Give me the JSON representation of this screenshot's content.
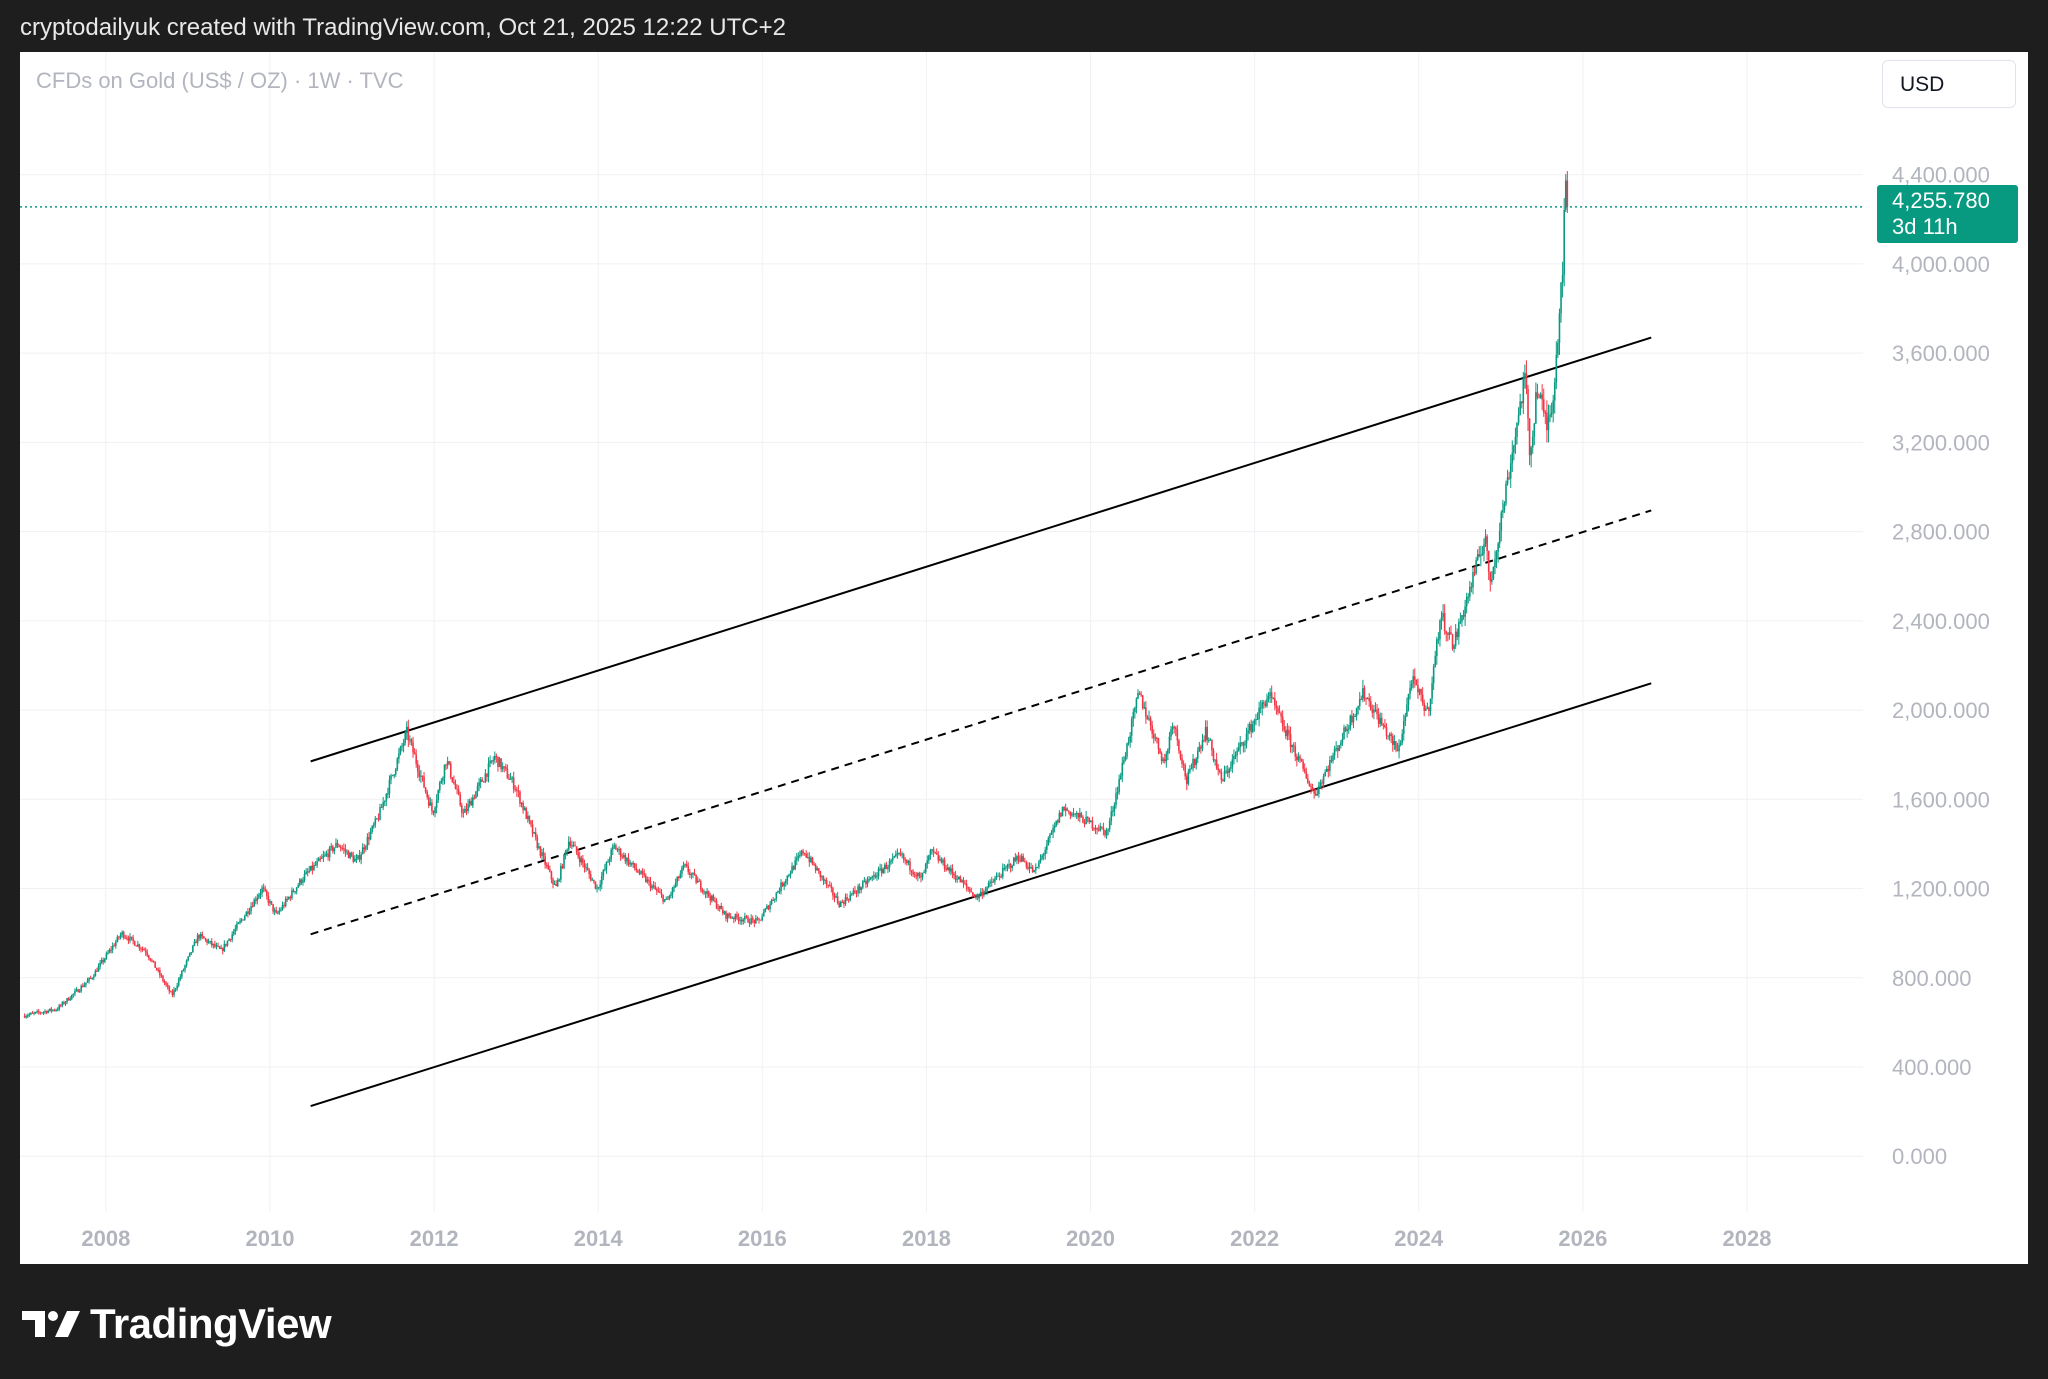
{
  "header": {
    "text": "cryptodailyuk created with TradingView.com, Oct 21, 2025 12:22 UTC+2"
  },
  "chart_header": {
    "symbol": "CFDs on Gold (US$ / OZ) · 1W · TVC",
    "currency": "USD"
  },
  "price_tag": {
    "price": "4,255.780",
    "countdown": "3d 11h"
  },
  "footer": {
    "brand": "TradingView"
  },
  "colors": {
    "up": "#089981",
    "down": "#f23645",
    "price_line": "#089981",
    "grid": "#f0f1f4",
    "axis_text": "#b2b5be",
    "channel": "#000000"
  },
  "chart_data": {
    "type": "candlestick",
    "timeframe": "1W",
    "x_axis": {
      "type": "date",
      "range": [
        "2006-12-15",
        "2029-06-01"
      ],
      "tick_labels": [
        "2008",
        "2010",
        "2012",
        "2014",
        "2016",
        "2018",
        "2020",
        "2022",
        "2024",
        "2026",
        "2028"
      ]
    },
    "y_axis": {
      "range": [
        -250,
        4950
      ],
      "tick_labels": [
        "0.000",
        "400.000",
        "800.000",
        "1,200.000",
        "1,600.000",
        "2,000.000",
        "2,400.000",
        "2,800.000",
        "3,200.000",
        "3,600.000",
        "4,000.000",
        "4,400.000"
      ],
      "ticks": [
        0,
        400,
        800,
        1200,
        1600,
        2000,
        2400,
        2800,
        3200,
        3600,
        4000,
        4400
      ]
    },
    "last_price": 4255.78,
    "grid": true,
    "price_path": [
      [
        "2007-01-01",
        630
      ],
      [
        "2007-06-01",
        660
      ],
      [
        "2007-11-01",
        800
      ],
      [
        "2008-03-15",
        1000
      ],
      [
        "2008-07-01",
        920
      ],
      [
        "2008-10-25",
        720
      ],
      [
        "2009-02-20",
        990
      ],
      [
        "2009-06-01",
        920
      ],
      [
        "2009-12-01",
        1200
      ],
      [
        "2010-02-01",
        1080
      ],
      [
        "2010-06-01",
        1250
      ],
      [
        "2010-11-01",
        1400
      ],
      [
        "2011-01-25",
        1320
      ],
      [
        "2011-05-01",
        1520
      ],
      [
        "2011-09-05",
        1900
      ],
      [
        "2011-12-29",
        1540
      ],
      [
        "2012-02-28",
        1780
      ],
      [
        "2012-05-15",
        1530
      ],
      [
        "2012-10-01",
        1790
      ],
      [
        "2012-12-30",
        1660
      ],
      [
        "2013-04-15",
        1380
      ],
      [
        "2013-06-30",
        1200
      ],
      [
        "2013-08-28",
        1420
      ],
      [
        "2013-12-31",
        1200
      ],
      [
        "2014-03-15",
        1390
      ],
      [
        "2014-11-05",
        1140
      ],
      [
        "2015-01-22",
        1300
      ],
      [
        "2015-07-24",
        1080
      ],
      [
        "2015-12-17",
        1050
      ],
      [
        "2016-07-06",
        1370
      ],
      [
        "2016-12-15",
        1130
      ],
      [
        "2017-09-08",
        1350
      ],
      [
        "2017-12-12",
        1240
      ],
      [
        "2018-01-25",
        1365
      ],
      [
        "2018-08-16",
        1160
      ],
      [
        "2019-02-20",
        1345
      ],
      [
        "2019-05-01",
        1270
      ],
      [
        "2019-09-04",
        1560
      ],
      [
        "2020-03-19",
        1450
      ],
      [
        "2020-08-07",
        2075
      ],
      [
        "2020-11-30",
        1760
      ],
      [
        "2021-01-06",
        1960
      ],
      [
        "2021-03-08",
        1680
      ],
      [
        "2021-06-01",
        1910
      ],
      [
        "2021-08-09",
        1680
      ],
      [
        "2022-03-08",
        2070
      ],
      [
        "2022-09-28",
        1620
      ],
      [
        "2023-05-04",
        2080
      ],
      [
        "2023-10-05",
        1810
      ],
      [
        "2023-12-04",
        2140
      ],
      [
        "2024-02-14",
        1985
      ],
      [
        "2024-04-12",
        2430
      ],
      [
        "2024-06-07",
        2290
      ],
      [
        "2024-10-30",
        2790
      ],
      [
        "2024-11-14",
        2540
      ],
      [
        "2025-04-22",
        3500
      ],
      [
        "2025-05-15",
        3120
      ],
      [
        "2025-06-13",
        3450
      ],
      [
        "2025-07-30",
        3270
      ],
      [
        "2025-08-29",
        3440
      ],
      [
        "2025-10-08",
        4030
      ],
      [
        "2025-10-20",
        4380
      ],
      [
        "2025-10-21",
        4255.78
      ]
    ],
    "annotations": {
      "channel_upper": [
        [
          "2010-07-01",
          1770
        ],
        [
          "2026-11-01",
          3670
        ]
      ],
      "channel_middle_dashed": [
        [
          "2010-07-01",
          995
        ],
        [
          "2026-11-01",
          2895
        ]
      ],
      "channel_lower": [
        [
          "2010-07-01",
          225
        ],
        [
          "2026-11-01",
          2120
        ]
      ],
      "price_line": 4255.78
    }
  }
}
